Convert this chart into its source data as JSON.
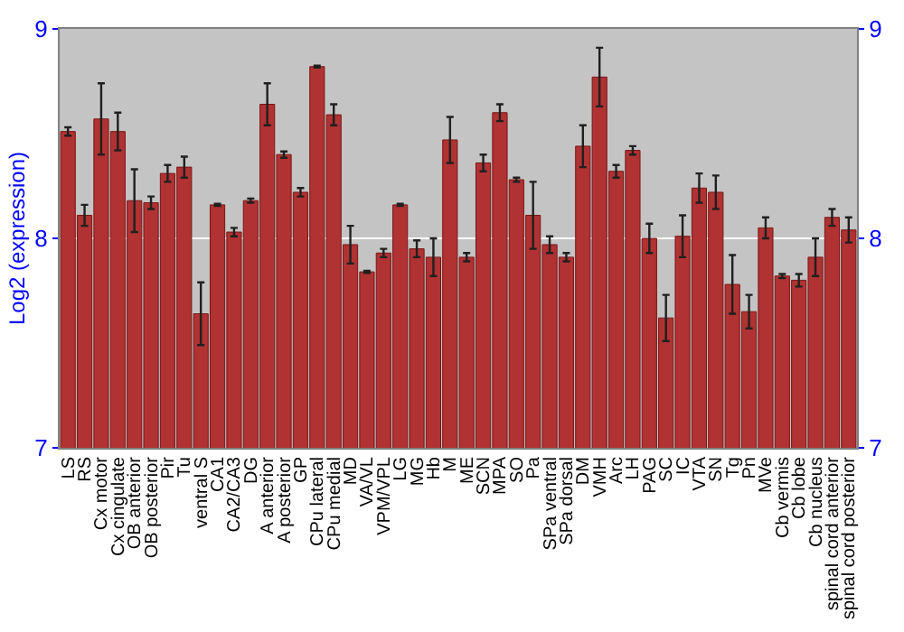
{
  "chart_data": {
    "type": "bar",
    "ylabel": "Log2 (expression)",
    "categories": [
      "LS",
      "RS",
      "Cx motor",
      "Cx cingulate",
      "OB anterior",
      "OB posterior",
      "Pir",
      "Tu",
      "ventral S",
      "CA1",
      "CA2/CA3",
      "DG",
      "A anterior",
      "A posterior",
      "GP",
      "CPu lateral",
      "CPu medial",
      "MD",
      "VA/VL",
      "VPM/VPL",
      "LG",
      "MG",
      "Hb",
      "M",
      "ME",
      "SCN",
      "MPA",
      "SO",
      "Pa",
      "SPa ventral",
      "SPa dorsal",
      "DM",
      "VMH",
      "Arc",
      "LH",
      "PAG",
      "SC",
      "IC",
      "VTA",
      "SN",
      "Tg",
      "Pn",
      "MVe",
      "Cb vermis",
      "Cb lobe",
      "Cb nucleus",
      "spinal cord anterior",
      "spinal cord posterior"
    ],
    "values": [
      8.51,
      8.11,
      8.57,
      8.51,
      8.18,
      8.17,
      8.31,
      8.34,
      7.64,
      8.16,
      8.03,
      8.18,
      8.64,
      8.4,
      8.22,
      8.82,
      8.59,
      7.97,
      7.84,
      7.93,
      8.16,
      7.95,
      7.91,
      8.47,
      7.91,
      8.36,
      8.6,
      8.28,
      8.11,
      7.97,
      7.91,
      8.44,
      8.77,
      8.32,
      8.42,
      8.0,
      7.62,
      8.01,
      8.24,
      8.22,
      7.78,
      7.65,
      8.05,
      7.82,
      7.8,
      7.91,
      8.1,
      8.04
    ],
    "errors": [
      0.02,
      0.05,
      0.17,
      0.09,
      0.15,
      0.03,
      0.04,
      0.05,
      0.15,
      0.005,
      0.02,
      0.01,
      0.1,
      0.015,
      0.02,
      0.005,
      0.05,
      0.09,
      0.005,
      0.02,
      0.005,
      0.04,
      0.09,
      0.11,
      0.02,
      0.04,
      0.04,
      0.01,
      0.16,
      0.04,
      0.02,
      0.1,
      0.14,
      0.03,
      0.02,
      0.07,
      0.11,
      0.1,
      0.07,
      0.08,
      0.14,
      0.08,
      0.05,
      0.01,
      0.03,
      0.09,
      0.04,
      0.06
    ],
    "color": "#b03232",
    "ylim": [
      7,
      9
    ],
    "yticks": [
      7,
      8,
      9
    ],
    "y2lim": [
      7,
      9
    ],
    "y2ticks": [
      7,
      8,
      9
    ],
    "grid": "y"
  }
}
